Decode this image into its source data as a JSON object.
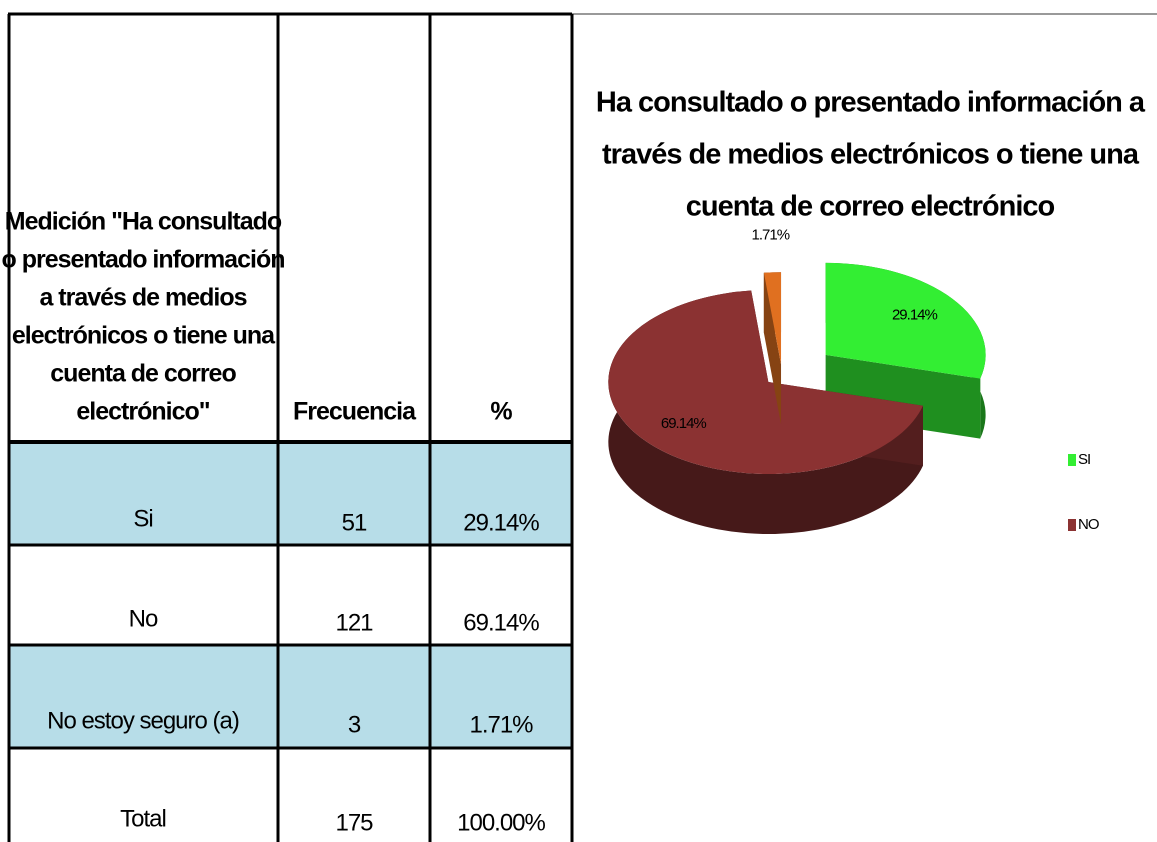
{
  "table": {
    "header": [
      [
        "Medición  \"Ha consultado",
        "o presentado información",
        "a través de medios",
        "electrónicos o tiene una",
        "cuenta de correo",
        "electrónico\""
      ],
      [
        "Frecuencia"
      ],
      [
        "%"
      ]
    ],
    "rows": [
      [
        "Si",
        "51",
        "29.14%"
      ],
      [
        "No",
        "121",
        "69.14%"
      ],
      [
        "No estoy seguro (a)",
        "3",
        "1.71%"
      ],
      [
        "Total",
        "175",
        "100.00%"
      ]
    ]
  },
  "chart_data": {
    "type": "pie",
    "title": [
      "Ha consultado o presentado información a",
      "través de medios electrónicos o tiene una",
      "cuenta de correo electrónico"
    ],
    "categories": [
      "SI",
      "NO",
      null
    ],
    "values": [
      29.14,
      69.14,
      1.71
    ],
    "value_labels": [
      "29.14%",
      "69.14%",
      "1.71%"
    ],
    "colors": [
      "#33ee33",
      "#8b3232",
      "#e07020"
    ],
    "legend": "right"
  }
}
